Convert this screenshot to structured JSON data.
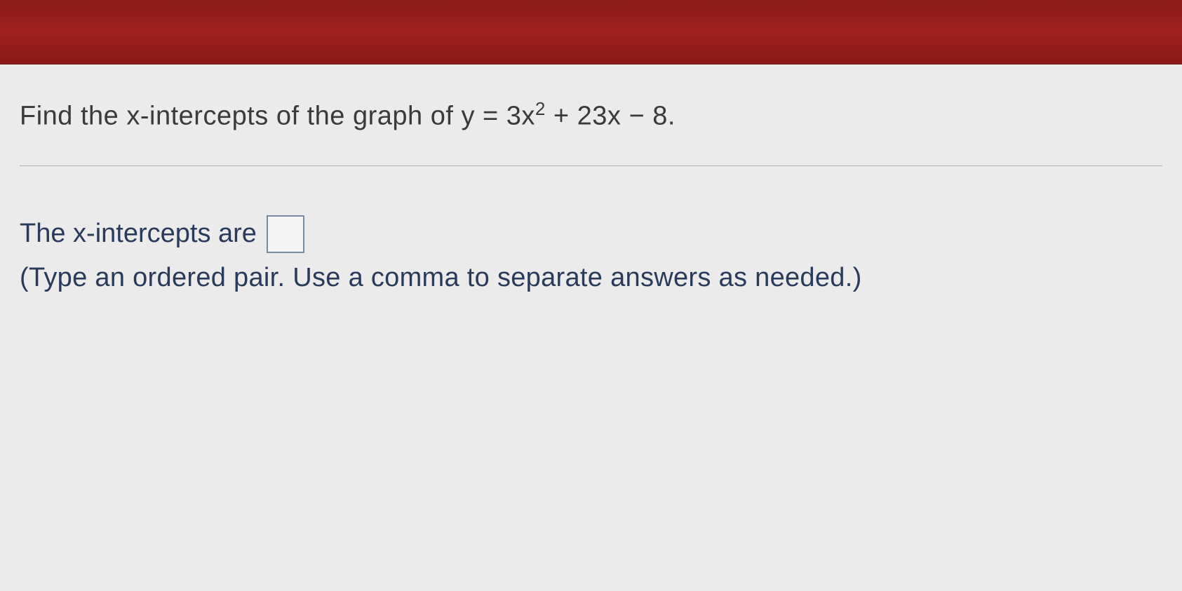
{
  "header": {
    "background_color": "#8b1a1a"
  },
  "question": {
    "prefix": "Find the x-intercepts of the graph of y = 3x",
    "exponent": "2",
    "suffix": " + 23x − 8."
  },
  "answer": {
    "label": "The x-intercepts are",
    "input_value": "",
    "hint": "(Type an ordered pair. Use a comma to separate answers as needed.)"
  },
  "colors": {
    "header_bg": "#8b1a1a",
    "content_bg": "#ebebeb",
    "question_text": "#3a3a3a",
    "answer_text": "#2a3a5a",
    "divider": "#b0b0b0",
    "input_border": "#7a8aa0"
  }
}
